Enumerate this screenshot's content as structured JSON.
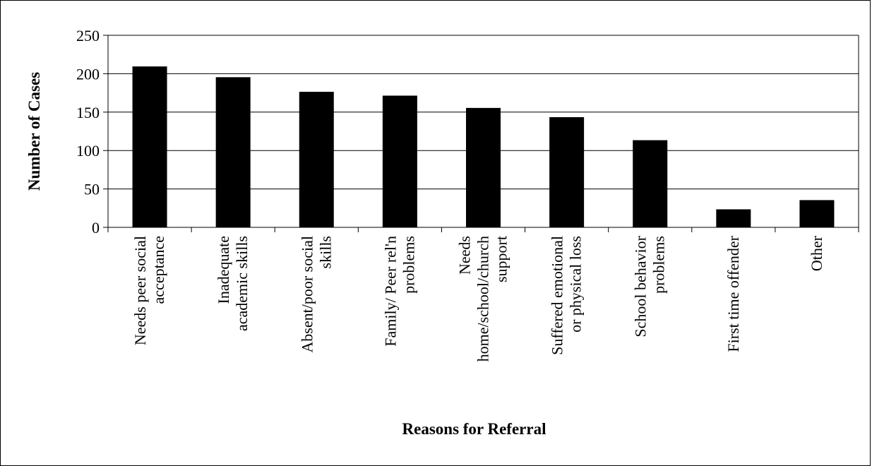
{
  "chart_data": {
    "type": "bar",
    "categories": [
      [
        "Needs peer social",
        "acceptance"
      ],
      [
        "Inadequate",
        "academic skills"
      ],
      [
        "Absent/poor social",
        "skills"
      ],
      [
        "Family/ Peer rel'n",
        "problems"
      ],
      [
        "Needs",
        "home/school/church",
        "support"
      ],
      [
        "Suffered emotional",
        "or physical loss"
      ],
      [
        "School behavior",
        "problems"
      ],
      [
        "First time offender"
      ],
      [
        "Other"
      ]
    ],
    "values": [
      209,
      195,
      176,
      171,
      155,
      143,
      113,
      23,
      35
    ],
    "xlabel": "Reasons for Referral",
    "ylabel": "Number of Cases",
    "ylim": [
      0,
      250
    ],
    "yticks": [
      0,
      50,
      100,
      150,
      200,
      250
    ],
    "grid": true,
    "legend": "none",
    "colors": {
      "bar": "#000000",
      "grid": "#000000",
      "background": "#ffffff"
    }
  }
}
